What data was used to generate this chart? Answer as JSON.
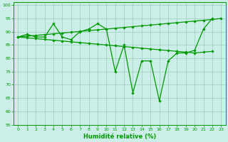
{
  "x": [
    0,
    1,
    2,
    3,
    4,
    5,
    6,
    7,
    8,
    9,
    10,
    11,
    12,
    13,
    14,
    15,
    16,
    17,
    18,
    19,
    20,
    21,
    22,
    23
  ],
  "line_jagged": [
    88,
    89,
    88,
    88,
    93,
    88,
    87,
    90,
    91,
    93,
    91,
    75,
    85,
    67,
    79,
    79,
    64,
    79,
    82,
    82,
    83,
    91,
    95,
    null
  ],
  "line_trend_top": [
    88,
    88.3,
    88.6,
    88.9,
    89.2,
    89.5,
    89.8,
    90.1,
    90.4,
    90.7,
    91.0,
    91.3,
    91.6,
    91.9,
    92.2,
    92.5,
    92.8,
    93.1,
    93.4,
    93.7,
    94.0,
    94.3,
    94.6,
    95.0
  ],
  "line_trend_bot": [
    88,
    87.7,
    87.4,
    87.1,
    86.8,
    86.5,
    86.2,
    85.9,
    85.6,
    85.3,
    85.0,
    84.7,
    84.4,
    84.1,
    83.8,
    83.5,
    83.2,
    82.9,
    82.6,
    82.3,
    82.0,
    82.3,
    82.6,
    null
  ],
  "bg_color": "#cceee8",
  "grid_color": "#99ccbb",
  "line_color": "#009900",
  "xlabel": "Humidité relative (%)",
  "ylim": [
    55,
    101
  ],
  "xlim": [
    -0.5,
    23.5
  ],
  "yticks": [
    55,
    60,
    65,
    70,
    75,
    80,
    85,
    90,
    95,
    100
  ],
  "xticks": [
    0,
    1,
    2,
    3,
    4,
    5,
    6,
    7,
    8,
    9,
    10,
    11,
    12,
    13,
    14,
    15,
    16,
    17,
    18,
    19,
    20,
    21,
    22,
    23
  ],
  "xlabel_fontsize": 6,
  "tick_fontsize": 4.5
}
